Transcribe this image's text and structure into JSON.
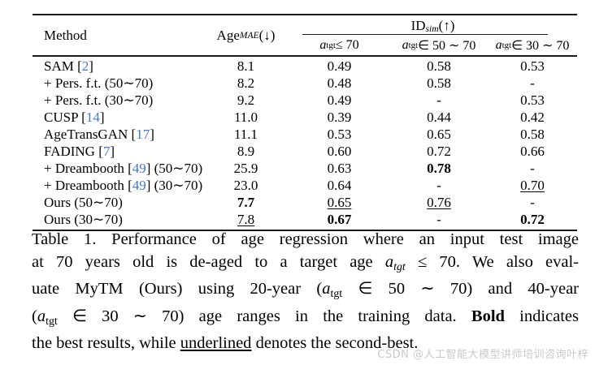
{
  "table": {
    "header": {
      "method_label": "Method",
      "age_mae": {
        "base": "Age",
        "sub": "MAE",
        "suffix": "(↓)"
      },
      "id_sim": {
        "base": "ID",
        "sub": "sim",
        "suffix": "(↑)"
      },
      "subcols": [
        [
          {
            "t": "a",
            "f": "i"
          },
          {
            "t": "tgt",
            "f": "sub"
          },
          {
            "t": " ≤ 70"
          }
        ],
        [
          {
            "t": "a",
            "f": "i"
          },
          {
            "t": "tgt",
            "f": "sub"
          },
          {
            "t": " ∈ 50 ∼ 70"
          }
        ],
        [
          {
            "t": "a",
            "f": "i"
          },
          {
            "t": "tgt",
            "f": "sub"
          },
          {
            "t": " ∈ 30 ∼ 70"
          }
        ]
      ]
    },
    "rows": [
      {
        "method": [
          {
            "t": "SAM ["
          },
          {
            "t": "2",
            "f": "c"
          },
          {
            "t": "]"
          }
        ],
        "cells": [
          {
            "t": "8.1"
          },
          {
            "t": "0.49"
          },
          {
            "t": "0.58"
          },
          {
            "t": "0.53"
          }
        ]
      },
      {
        "method": [
          {
            "t": "+ Pers. f.t. (50∼70)"
          }
        ],
        "cells": [
          {
            "t": "8.2"
          },
          {
            "t": "0.48"
          },
          {
            "t": "0.58"
          },
          {
            "t": "-"
          }
        ]
      },
      {
        "method": [
          {
            "t": "+ Pers. f.t. (30∼70)"
          }
        ],
        "cells": [
          {
            "t": "9.2"
          },
          {
            "t": "0.49"
          },
          {
            "t": "-"
          },
          {
            "t": "0.53"
          }
        ]
      },
      {
        "method": [
          {
            "t": "CUSP ["
          },
          {
            "t": "14",
            "f": "c"
          },
          {
            "t": "]"
          }
        ],
        "cells": [
          {
            "t": "11.0"
          },
          {
            "t": "0.39"
          },
          {
            "t": "0.44"
          },
          {
            "t": "0.42"
          }
        ]
      },
      {
        "method": [
          {
            "t": "AgeTransGAN ["
          },
          {
            "t": "17",
            "f": "c"
          },
          {
            "t": "]"
          }
        ],
        "cells": [
          {
            "t": "11.1"
          },
          {
            "t": "0.53"
          },
          {
            "t": "0.65"
          },
          {
            "t": "0.58"
          }
        ]
      },
      {
        "method": [
          {
            "t": "FADING ["
          },
          {
            "t": "7",
            "f": "c"
          },
          {
            "t": "]"
          }
        ],
        "cells": [
          {
            "t": "8.9"
          },
          {
            "t": "0.60"
          },
          {
            "t": "0.72"
          },
          {
            "t": "0.66"
          }
        ]
      },
      {
        "method": [
          {
            "t": "+ Dreambooth ["
          },
          {
            "t": "49",
            "f": "c"
          },
          {
            "t": "] (50∼70)"
          }
        ],
        "cells": [
          {
            "t": "25.9"
          },
          {
            "t": "0.63"
          },
          {
            "t": "0.78",
            "f": "b"
          },
          {
            "t": "-"
          }
        ]
      },
      {
        "method": [
          {
            "t": "+ Dreambooth ["
          },
          {
            "t": "49",
            "f": "c"
          },
          {
            "t": "] (30∼70)"
          }
        ],
        "cells": [
          {
            "t": "23.0"
          },
          {
            "t": "0.64"
          },
          {
            "t": "-"
          },
          {
            "t": "0.70",
            "f": "u"
          }
        ]
      },
      {
        "method": [
          {
            "t": "Ours (50∼70)"
          }
        ],
        "cells": [
          {
            "t": "7.7",
            "f": "b"
          },
          {
            "t": "0.65",
            "f": "u"
          },
          {
            "t": "0.76",
            "f": "u"
          },
          {
            "t": "-"
          }
        ]
      },
      {
        "method": [
          {
            "t": "Ours (30∼70)"
          }
        ],
        "cells": [
          {
            "t": "7.8",
            "f": "u"
          },
          {
            "t": "0.67",
            "f": "b"
          },
          {
            "t": "-"
          },
          {
            "t": "0.72",
            "f": "b"
          }
        ]
      }
    ]
  },
  "caption": {
    "lines": [
      [
        {
          "t": "Table 1. Performance of age regression where an input test image"
        }
      ],
      [
        {
          "t": "at 70 years old is de-aged to a target age "
        },
        {
          "t": "a",
          "f": "i"
        },
        {
          "t": "tgt",
          "f": "sub i"
        },
        {
          "t": " ≤ 70. We also eval-"
        }
      ],
      [
        {
          "t": "uate MyTM (Ours) using 20-year ("
        },
        {
          "t": "a",
          "f": "i"
        },
        {
          "t": "tgt",
          "f": "sub"
        },
        {
          "t": " ∈ 50 ∼ 70) and 40-year"
        }
      ],
      [
        {
          "t": "("
        },
        {
          "t": "a",
          "f": "i"
        },
        {
          "t": "tgt",
          "f": "sub"
        },
        {
          "t": " ∈ 30 ∼ 70) age ranges in the training data. "
        },
        {
          "t": "Bold",
          "f": "b"
        },
        {
          "t": " indicates"
        }
      ],
      [
        {
          "t": "the best results, while "
        },
        {
          "t": "underlined",
          "f": "u"
        },
        {
          "t": " denotes the second-best."
        }
      ]
    ]
  },
  "watermark": "CSDN @人工智能大模型讲师培训咨询叶梓",
  "colors": {
    "citation_blue": "#4677c8",
    "watermark_gray": "#cbc8c8",
    "rule_black": "#1a1a1a"
  }
}
